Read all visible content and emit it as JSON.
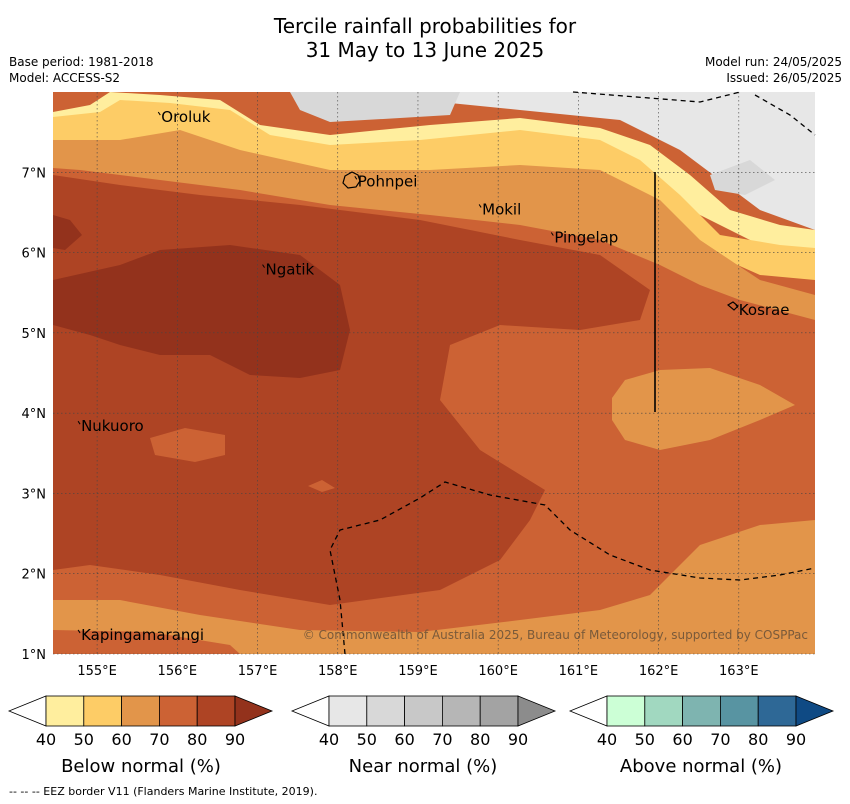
{
  "title": {
    "line1": "Tercile rainfall probabilities for",
    "line2": "31 May to 13 June 2025"
  },
  "meta": {
    "base_period": "Base period: 1981-2018",
    "model": "Model: ACCESS-S2",
    "model_run": "Model run: 24/05/2025",
    "issued": "Issued: 26/05/2025"
  },
  "map": {
    "lon_ticks": [
      "155°E",
      "156°E",
      "157°E",
      "158°E",
      "159°E",
      "160°E",
      "161°E",
      "162°E",
      "163°E"
    ],
    "lat_ticks": [
      "7°N",
      "6°N",
      "5°N",
      "4°N",
      "3°N",
      "2°N",
      "1°N"
    ],
    "lon_range": [
      154.45,
      163.95
    ],
    "lat_range": [
      1.0,
      8.0
    ],
    "places": [
      {
        "name": "Oroluk",
        "lon": 155.8,
        "lat": 7.7
      },
      {
        "name": "Pohnpei",
        "lon": 158.25,
        "lat": 6.9
      },
      {
        "name": "Mokil",
        "lon": 159.8,
        "lat": 6.55
      },
      {
        "name": "Pingelap",
        "lon": 160.7,
        "lat": 6.2
      },
      {
        "name": "Ngatik",
        "lon": 157.1,
        "lat": 5.8
      },
      {
        "name": "Kosrae",
        "lon": 163.0,
        "lat": 5.3
      },
      {
        "name": "Nukuoro",
        "lon": 154.8,
        "lat": 3.85
      },
      {
        "name": "Kapingamarangi",
        "lon": 154.8,
        "lat": 1.25
      }
    ],
    "copyright": "© Commonwealth of Australia 2025, Bureau of Meteorology, supported by COSPPac"
  },
  "colorbars": [
    {
      "label": "Below normal (%)",
      "ticks": [
        "40",
        "50",
        "60",
        "70",
        "80",
        "90"
      ],
      "colors": [
        "#ffffff",
        "#ffee9e",
        "#fdcc66",
        "#e2954a",
        "#cc6234",
        "#ae4424",
        "#93321c"
      ]
    },
    {
      "label": "Near normal (%)",
      "ticks": [
        "40",
        "50",
        "60",
        "70",
        "80",
        "90"
      ],
      "colors": [
        "#ffffff",
        "#e7e7e7",
        "#d8d8d8",
        "#c8c8c8",
        "#b6b6b6",
        "#a3a3a3",
        "#8c8c8c"
      ]
    },
    {
      "label": "Above normal (%)",
      "ticks": [
        "40",
        "50",
        "60",
        "70",
        "80",
        "90"
      ],
      "colors": [
        "#ffffff",
        "#ccffd6",
        "#a1d8c0",
        "#7eb4b0",
        "#5894a2",
        "#2e6896",
        "#0f4a84"
      ]
    }
  ],
  "footnote": "--  --  -- EEZ border V11 (Flanders Marine Institute, 2019)."
}
